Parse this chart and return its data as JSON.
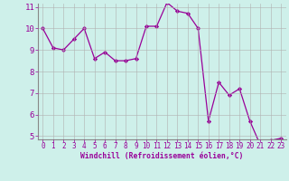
{
  "x": [
    0,
    1,
    2,
    3,
    4,
    5,
    6,
    7,
    8,
    9,
    10,
    11,
    12,
    13,
    14,
    15,
    16,
    17,
    18,
    19,
    20,
    21,
    22,
    23
  ],
  "y": [
    10.0,
    9.1,
    9.0,
    9.5,
    10.0,
    8.6,
    8.9,
    8.5,
    8.5,
    8.6,
    10.1,
    10.1,
    11.2,
    10.8,
    10.7,
    10.0,
    5.7,
    7.5,
    6.9,
    7.2,
    5.7,
    4.6,
    4.8,
    4.9
  ],
  "line_color": "#990099",
  "marker": "D",
  "marker_size": 2.2,
  "bg_color": "#cef0ea",
  "grid_color": "#b0b0b0",
  "xlabel": "Windchill (Refroidissement éolien,°C)",
  "xlabel_color": "#990099",
  "tick_color": "#990099",
  "axis_color": "#888888",
  "ylim": [
    5,
    11
  ],
  "xlim": [
    -0.5,
    23.5
  ],
  "yticks": [
    5,
    6,
    7,
    8,
    9,
    10,
    11
  ],
  "xticks": [
    0,
    1,
    2,
    3,
    4,
    5,
    6,
    7,
    8,
    9,
    10,
    11,
    12,
    13,
    14,
    15,
    16,
    17,
    18,
    19,
    20,
    21,
    22,
    23
  ],
  "tick_fontsize": 5.5,
  "xlabel_fontsize": 5.8,
  "ytick_fontsize": 6.5
}
